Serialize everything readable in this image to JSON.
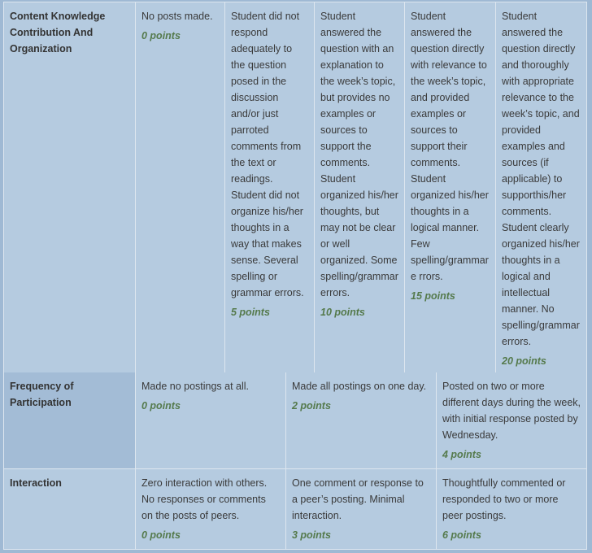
{
  "rows": [
    {
      "criterion": "Content Knowledge Contribution And Organization",
      "levels": [
        {
          "text": "No posts made.",
          "points": "0 points"
        },
        {
          "text": "Student did not respond adequately to the question posed in the discussion and/or just parroted comments from the text or readings. Student did not organize his/her thoughts in a way that makes sense. Several spelling or grammar errors.",
          "points": "5 points"
        },
        {
          "text": "Student answered the question with an explanation to the week’s topic, but provides no examples or sources to support the comments. Student organized his/her thoughts, but may not be clear or well organized. Some spelling/grammar errors.",
          "points": "10 points"
        },
        {
          "text": "Student answered the question directly with relevance to the week’s topic, and provided examples or sources to support their comments. Student organized his/her thoughts in a logical manner. Few spelling/grammar e rrors.",
          "points": "15 points"
        },
        {
          "text": "Student answered the question directly and thoroughly with appropriate relevance to the week’s topic, and provided examples and sources (if applicable) to supporthis/her comments. Student clearly organized his/her thoughts in a logical and intellectual manner. No spelling/grammar errors.",
          "points": "20 points"
        }
      ]
    },
    {
      "criterion": "Frequency of Participation",
      "levels": [
        {
          "text": "Made no postings at all.",
          "points": "0 points"
        },
        {
          "text": "Made all postings on one day.",
          "points": "2 points"
        },
        {
          "text": "Posted on two or more different days during the week, with initial response posted by Wednesday.",
          "points": "4 points"
        }
      ]
    },
    {
      "criterion": "Interaction",
      "levels": [
        {
          "text": "Zero interaction with others. No responses or comments on the posts of peers.",
          "points": "0 points"
        },
        {
          "text": "One comment or response to a peer’s posting. Minimal interaction.",
          "points": "3 points"
        },
        {
          "text": "Thoughtfully commented or responded to two or more peer postings.",
          "points": "6 points"
        }
      ]
    }
  ],
  "colors": {
    "cell": "#b5cbe0",
    "highlight": "#a3bcd6",
    "points": "#557a4c",
    "border": "#dde6ef"
  }
}
